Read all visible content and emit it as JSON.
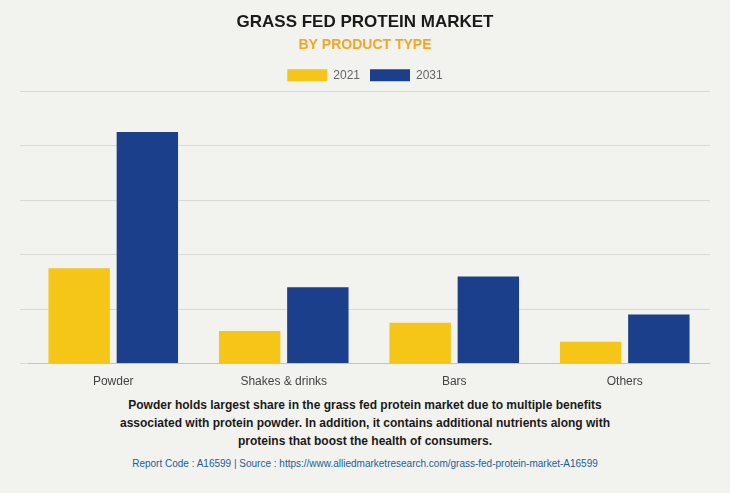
{
  "chart_data": {
    "type": "bar",
    "title": "GRASS FED PROTEIN MARKET",
    "subtitle": "BY PRODUCT TYPE",
    "categories": [
      "Powder",
      "Shakes & drinks",
      "Bars",
      "Others"
    ],
    "series": [
      {
        "name": "2021",
        "color": "#F5C518",
        "values": [
          3.5,
          1.2,
          1.5,
          0.8
        ]
      },
      {
        "name": "2031",
        "color": "#1B3F8B",
        "values": [
          8.5,
          2.8,
          3.2,
          1.8
        ]
      }
    ],
    "ylim": [
      0,
      10
    ],
    "yticks": [
      0,
      2,
      4,
      6,
      8,
      10
    ],
    "grid": true,
    "legend": "top",
    "tick_labels": "x",
    "annotations": [
      "Powder holds largest share in the grass fed protein market due to multiple benefits\nassociated with protein powder. In addition, it contains additional nutrients along with\nproteins that boost the health of consumers.",
      "Report Code : A16599  |  Source : https://www.alliedmarketresearch.com/grass-fed-protein-market-A16599"
    ]
  }
}
